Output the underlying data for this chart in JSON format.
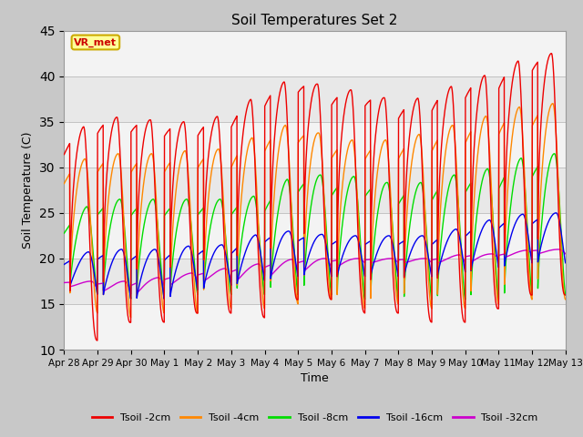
{
  "title": "Soil Temperatures Set 2",
  "xlabel": "Time",
  "ylabel": "Soil Temperature (C)",
  "ylim": [
    10,
    45
  ],
  "yticks": [
    10,
    15,
    20,
    25,
    30,
    35,
    40,
    45
  ],
  "fig_bg_color": "#c8c8c8",
  "plot_bg_color": "#e8e8e8",
  "annotation_text": "VR_met",
  "annotation_bg": "#ffff99",
  "annotation_border": "#ccaa00",
  "line_colors": {
    "2cm": "#ee0000",
    "4cm": "#ff8800",
    "8cm": "#00dd00",
    "16cm": "#0000ee",
    "32cm": "#cc00cc"
  },
  "legend_labels": [
    "Tsoil -2cm",
    "Tsoil -4cm",
    "Tsoil -8cm",
    "Tsoil -16cm",
    "Tsoil -32cm"
  ],
  "num_days": 15,
  "date_labels": [
    "Apr 28",
    "Apr 29",
    "Apr 30",
    "May 1",
    "May 2",
    "May 3",
    "May 4",
    "May 5",
    "May 6",
    "May 7",
    "May 8",
    "May 9",
    "May 10",
    "May 11",
    "May 12",
    "May 13"
  ],
  "min_2cm": [
    11,
    11,
    13,
    13,
    14,
    14,
    13.5,
    15.5,
    15.5,
    14,
    14,
    13,
    13,
    14.5,
    16
  ],
  "max_2cm": [
    33,
    35.5,
    35.5,
    35,
    35,
    36,
    38.5,
    40,
    38.5,
    38.5,
    37,
    38,
    39.5,
    40.5,
    42.5
  ],
  "min_4cm": [
    14.5,
    14,
    13.5,
    14,
    14,
    14.5,
    14.5,
    15,
    15.5,
    14.5,
    15,
    14.5,
    14.5,
    15,
    15.5
  ],
  "max_4cm": [
    30,
    31.5,
    31.5,
    31.5,
    32,
    32,
    34,
    35,
    33,
    33,
    33,
    34,
    35,
    36,
    37
  ],
  "min_8cm": [
    16.5,
    16,
    15.5,
    15.5,
    16,
    16,
    16,
    16,
    16,
    15.5,
    15.5,
    15.5,
    15.5,
    15.5,
    16
  ],
  "max_8cm": [
    24,
    26.5,
    26.5,
    26.5,
    26.5,
    26.5,
    27,
    29.5,
    29,
    29,
    28,
    28.5,
    29.5,
    30,
    31.5
  ],
  "min_16cm": [
    17,
    16,
    15.5,
    15.5,
    16.5,
    17,
    17.5,
    18,
    18,
    18,
    18,
    18,
    18.5,
    19,
    19.5
  ],
  "max_16cm": [
    20,
    21,
    21,
    21,
    21.5,
    21.5,
    23,
    23,
    22.5,
    22.5,
    22.5,
    22.5,
    23.5,
    24.5,
    25
  ],
  "min_32cm": [
    17,
    16.5,
    16,
    17,
    17.5,
    17.5,
    18,
    18.5,
    19,
    19.5,
    19.5,
    19.5,
    19.5,
    20,
    20.5
  ],
  "max_32cm": [
    17.5,
    17.5,
    17.5,
    18,
    18.5,
    19,
    19.5,
    20,
    20,
    20,
    20,
    20,
    20.5,
    20.5,
    21
  ]
}
